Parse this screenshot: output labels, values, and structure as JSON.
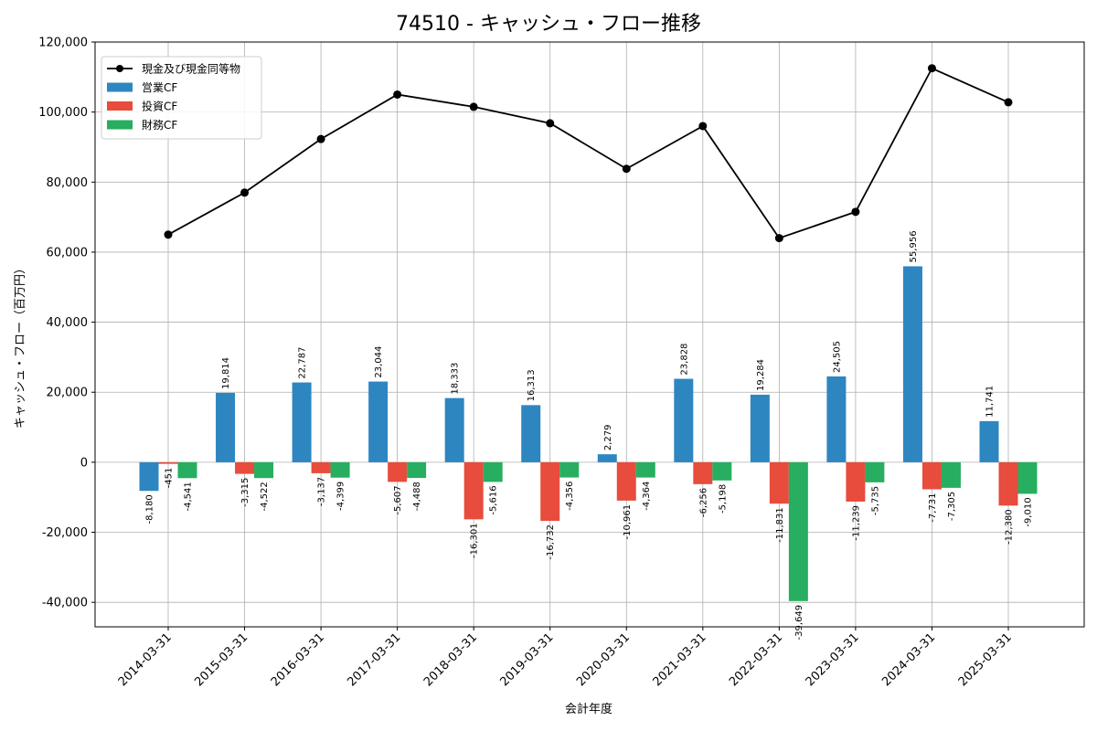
{
  "chart_data": {
    "type": "bar",
    "title": "74510 - キャッシュ・フロー推移",
    "xlabel": "会計年度",
    "ylabel": "キャッシュ・フロー（百万円）",
    "ylim": [
      -47000,
      120000
    ],
    "yticks": [
      -40000,
      -20000,
      0,
      20000,
      40000,
      60000,
      80000,
      100000,
      120000
    ],
    "ytick_labels": [
      "-40,000",
      "-20,000",
      "0",
      "20,000",
      "40,000",
      "60,000",
      "80,000",
      "100,000",
      "120,000"
    ],
    "grid": true,
    "legend_position": "top-left",
    "categories": [
      "2014-03-31",
      "2015-03-31",
      "2016-03-31",
      "2017-03-31",
      "2018-03-31",
      "2019-03-31",
      "2020-03-31",
      "2021-03-31",
      "2022-03-31",
      "2023-03-31",
      "2024-03-31",
      "2025-03-31"
    ],
    "series": [
      {
        "name": "営業CF",
        "kind": "bar",
        "color": "#2e86c1",
        "values": [
          -8180,
          19814,
          22787,
          23044,
          18333,
          16313,
          2279,
          23828,
          19284,
          24505,
          55956,
          11741
        ],
        "labels": [
          "-8,180",
          "19,814",
          "22,787",
          "23,044",
          "18,333",
          "16,313",
          "2,279",
          "23,828",
          "19,284",
          "24,505",
          "55,956",
          "11,741"
        ]
      },
      {
        "name": "投資CF",
        "kind": "bar",
        "color": "#e74c3c",
        "values": [
          -451,
          -3315,
          -3137,
          -5607,
          -16301,
          -16732,
          -10961,
          -6256,
          -11831,
          -11239,
          -7731,
          -12380
        ],
        "labels": [
          "-451",
          "-3,315",
          "-3,137",
          "-5,607",
          "-16,301",
          "-16,732",
          "-10,961",
          "-6,256",
          "-11,831",
          "-11,239",
          "-7,731",
          "-12,380"
        ]
      },
      {
        "name": "財務CF",
        "kind": "bar",
        "color": "#27ae60",
        "values": [
          -4541,
          -4522,
          -4399,
          -4488,
          -5616,
          -4356,
          -4364,
          -5198,
          -39649,
          -5735,
          -7305,
          -9010
        ],
        "labels": [
          "-4,541",
          "-4,522",
          "-4,399",
          "-4,488",
          "-5,616",
          "-4,356",
          "-4,364",
          "-5,198",
          "-39,649",
          "-5,735",
          "-7,305",
          "-9,010"
        ]
      },
      {
        "name": "現金及び現金同等物",
        "kind": "line",
        "color": "#000000",
        "values": [
          65000,
          77000,
          92300,
          105000,
          101500,
          96800,
          83800,
          96000,
          64000,
          71500,
          112500,
          102800
        ]
      }
    ]
  }
}
